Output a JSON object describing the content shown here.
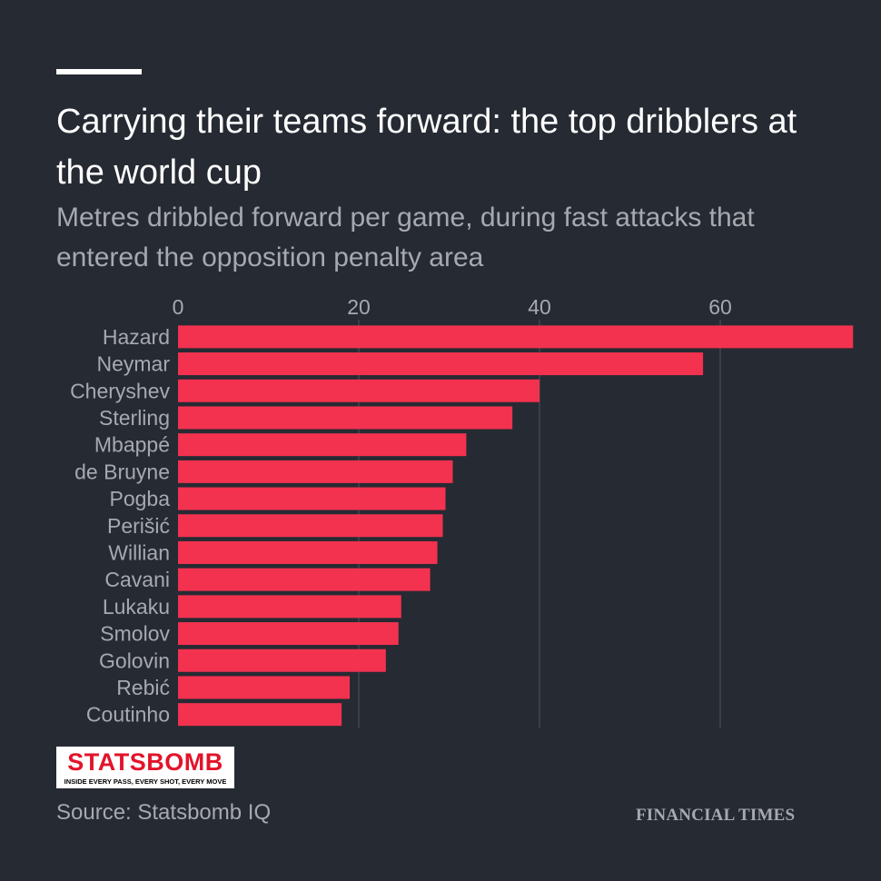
{
  "header": {
    "title": "Carrying their teams forward: the top dribblers at the world cup",
    "subtitle": "Metres dribbled forward per game, during fast attacks that entered the opposition penalty area"
  },
  "chart_data": {
    "type": "bar",
    "orientation": "horizontal",
    "title": "Carrying their teams forward: the top dribblers at the world cup",
    "subtitle": "Metres dribbled forward per game, during fast attacks that entered the opposition penalty area",
    "xlabel": "",
    "ylabel": "",
    "xlim": [
      0,
      75
    ],
    "ticks": [
      0,
      20,
      40,
      60
    ],
    "tick_labels": [
      "0",
      "20",
      "40",
      "60"
    ],
    "grid": true,
    "categories": [
      "Hazard",
      "Neymar",
      "Cheryshev",
      "Sterling",
      "Mbappé",
      "de Bruyne",
      "Pogba",
      "Perišić",
      "Willian",
      "Cavani",
      "Lukaku",
      "Smolov",
      "Golovin",
      "Rebić",
      "Coutinho"
    ],
    "values": [
      74.7,
      58.1,
      40.0,
      37.0,
      31.9,
      30.4,
      29.6,
      29.3,
      28.7,
      27.9,
      24.7,
      24.4,
      23.0,
      19.0,
      18.1
    ],
    "bar_color": "#f3324f"
  },
  "colors": {
    "background": "#262a33",
    "title": "#ffffff",
    "muted": "#a7a9b0",
    "gridline": "#4f535c",
    "bar": "#f3324f",
    "logo_red": "#e3132b"
  },
  "logo": {
    "wordmark": "STATSBOMB",
    "tagline": "INSIDE EVERY PASS, EVERY SHOT, EVERY MOVE"
  },
  "footer": {
    "source": "Source: Statsbomb IQ",
    "brand": "FINANCIAL TIMES"
  }
}
